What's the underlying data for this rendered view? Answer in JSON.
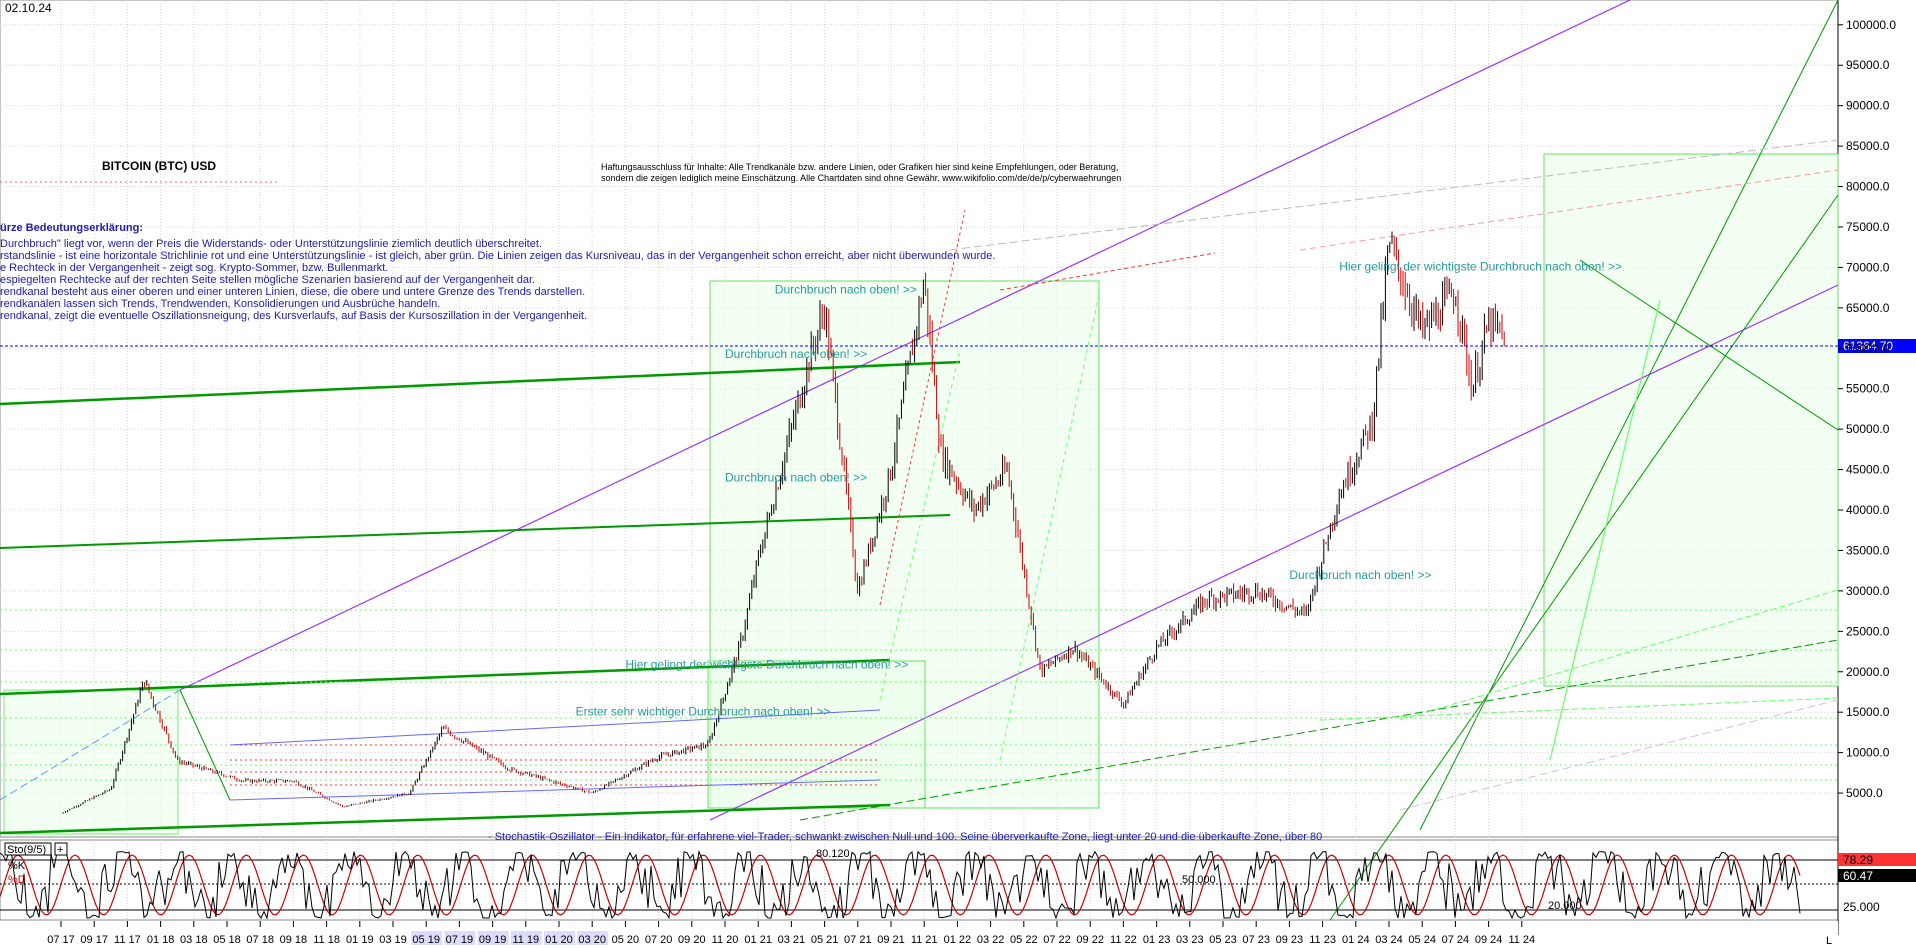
{
  "chart_data": {
    "type": "candlestick",
    "title": "BITCOIN (BTC) USD",
    "date_label": "02.10.24",
    "last_price": "61364.70",
    "y_axis": {
      "min": 0,
      "max": 105000,
      "ticks": [
        "100000.0",
        "95000.0",
        "90000.0",
        "85000.0",
        "80000.0",
        "75000.0",
        "70000.0",
        "65000.0",
        "60000.0",
        "55000.0",
        "50000.0",
        "45000.0",
        "40000.0",
        "35000.0",
        "30000.0",
        "25000.0",
        "20000.0",
        "15000.0",
        "10000.0",
        "5000.0"
      ]
    },
    "x_axis": {
      "ticks": [
        "07.17",
        "09.17",
        "11.17",
        "01.18",
        "03.18",
        "05.18",
        "07.18",
        "09.18",
        "11.18",
        "01.19",
        "03.19",
        "05.19",
        "07.19",
        "09.19",
        "11.19",
        "01.20",
        "03.20",
        "05.20",
        "07.20",
        "09.20",
        "11.20",
        "01.21",
        "03.21",
        "05.21",
        "07.21",
        "09.21",
        "11.21",
        "01.22",
        "03.22",
        "05.22",
        "07.22",
        "09.22",
        "11.22",
        "01.23",
        "03.23",
        "05.23",
        "07.23",
        "09.23",
        "11.23",
        "01.24",
        "03.24",
        "05.24",
        "07.24",
        "09.24",
        "11.24"
      ],
      "end_label": "L"
    },
    "price_series": {
      "dates": [
        "07.17",
        "10.17",
        "12.17",
        "02.18",
        "06.18",
        "09.18",
        "12.18",
        "04.19",
        "06.19",
        "10.19",
        "03.20",
        "07.20",
        "10.20",
        "12.20",
        "01.21",
        "04.21",
        "05.21",
        "07.21",
        "09.21",
        "11.21",
        "12.21",
        "02.22",
        "04.22",
        "06.22",
        "08.22",
        "11.22",
        "01.23",
        "04.23",
        "07.23",
        "10.23",
        "12.23",
        "02.24",
        "03.24",
        "05.24",
        "07.24",
        "08.24",
        "09.24",
        "10.24"
      ],
      "close": [
        2500,
        5500,
        19000,
        9000,
        6500,
        6500,
        3300,
        5000,
        13000,
        8000,
        5000,
        9500,
        11000,
        24000,
        34000,
        58000,
        65000,
        30000,
        45000,
        68500,
        47000,
        40000,
        45000,
        20000,
        23000,
        16000,
        23000,
        29000,
        30000,
        27000,
        42000,
        51000,
        73000,
        62000,
        67000,
        55000,
        63000,
        61364.7
      ]
    },
    "stochastic": {
      "label": "Sto(9/5)",
      "k_label": "%K",
      "d_label": "%D",
      "k_value": "78.29",
      "d_value": "60.47",
      "levels": [
        "80.120",
        "50.000",
        "20.000"
      ],
      "right_level": "25.000"
    },
    "explanation": {
      "heading": "ürze Bedeutungserklärung:",
      "lines": [
        "Durchbruch\" liegt vor, wenn der Preis die Widerstands- oder Unterstützungslinie ziemlich deutlich überschreitet.",
        "rstandslinie - ist eine horizontale Strichlinie rot und eine Unterstützungslinie - ist gleich, aber grün. Die Linien zeigen das Kursniveau, das in der Vergangenheit schon erreicht, aber nicht überwunden wurde.",
        "e Rechteck in der Vergangenheit - zeigt sog. Krypto-Sommer, bzw. Bullenmarkt.",
        "espiegelten Rechtecke auf der rechten Seite stellen mögliche Szenarien basierend auf der Vergangenheit dar.",
        "rendkanal besteht aus einer oberen und einer unteren Linien, diese, die obere und untere Grenze des Trends darstellen.",
        "rendkanälen lassen sich Trends, Trendwenden, Konsolidierungen und Ausbrüche handeln.",
        "rendkanal, zeigt die eventuelle Oszillationsneigung, des Kursverlaufs, auf Basis der Kursoszillation in der Vergangenheit."
      ]
    },
    "disclaimer": [
      "Haftungsausschluss für Inhalte: Alle Trendkanäle bzw. andere Linien, oder Grafiken hier sind keine Empfehlungen, oder Beratung,",
      "sondern die zeigen lediglich meine  Einschätzung. Alle Chartdaten sind ohne Gewähr.  www.wikifolio.com/de/de/p/cyberwaehrungen"
    ],
    "annotations": [
      {
        "text": "Durchbruch nach oben! >>",
        "date": "02.21",
        "price": 66800
      },
      {
        "text": "Durchbruch nach oben! >>",
        "date": "11.20",
        "price": 58800
      },
      {
        "text": "Durchbruch nach oben! >>",
        "date": "11.20",
        "price": 43500
      },
      {
        "text": "Hier gelingt der wichtigste Durchbruch nach oben! >>",
        "date": "05.20",
        "price": 20400
      },
      {
        "text": "Erster sehr wichtiger Durchbruch nach oben! >>",
        "date": "02.20",
        "price": 14600
      },
      {
        "text": "Durchbruch nach oben! >>",
        "date": "09.23",
        "price": 31500
      },
      {
        "text": "Hier gelingt der wichtigste Durchbruch nach oben! >>",
        "date": "12.23",
        "price": 69600
      }
    ],
    "stochastic_note": "- Stochastik-Oszillator - Ein Indikator, für erfahrene viel-Trader, schwankt zwischen Null und 100. Seine überverkaufte Zone, liegt unter 20 und die überkaufte Zone, über 80"
  },
  "colors": {
    "purple": "#9933ff",
    "green": "#009900",
    "light_green": "#66ff66",
    "red": "#ff3333",
    "blue_line": "#0000ff",
    "price_box": "#0000ff"
  }
}
